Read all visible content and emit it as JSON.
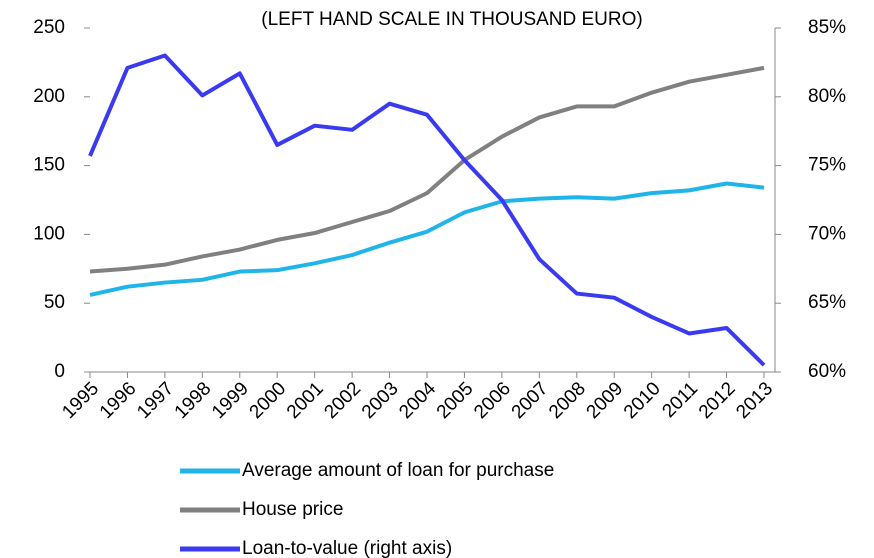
{
  "chart_data": {
    "type": "line",
    "title": "(LEFT HAND SCALE IN THOUSAND EURO)",
    "categories": [
      "1995",
      "1996",
      "1997",
      "1998",
      "1999",
      "2000",
      "2001",
      "2002",
      "2003",
      "2004",
      "2005",
      "2006",
      "2007",
      "2008",
      "2009",
      "2010",
      "2011",
      "2012",
      "2013"
    ],
    "series": [
      {
        "name": "Average amount of loan for purchase",
        "color": "#1fb5e8",
        "values": [
          56,
          62,
          65,
          67,
          73,
          74,
          79,
          85,
          94,
          102,
          116,
          124,
          126,
          127,
          126,
          130,
          132,
          137,
          134
        ]
      },
      {
        "name": "House price",
        "color": "#808080",
        "values": [
          73,
          75,
          78,
          84,
          89,
          96,
          101,
          109,
          117,
          130,
          154,
          171,
          185,
          193,
          193,
          203,
          211,
          216,
          221
        ]
      },
      {
        "name": "Loan-to-value (right axis)",
        "color": "#3a3af0",
        "axis": "y2",
        "values": [
          75.7,
          82.1,
          83.0,
          80.1,
          81.7,
          76.5,
          77.9,
          77.6,
          79.5,
          78.7,
          75.4,
          72.5,
          68.2,
          65.7,
          65.4,
          64.0,
          62.8,
          63.2,
          60.5
        ]
      }
    ],
    "ylim": [
      0,
      250
    ],
    "yticks": [
      0,
      50,
      100,
      150,
      200,
      250
    ],
    "y2lim": [
      60,
      85
    ],
    "y2ticks": [
      {
        "value": 60,
        "label": "60%"
      },
      {
        "value": 65,
        "label": "65%"
      },
      {
        "value": 70,
        "label": "70%"
      },
      {
        "value": 75,
        "label": "75%"
      },
      {
        "value": 80,
        "label": "80%"
      },
      {
        "value": 85,
        "label": "85%"
      }
    ],
    "legend": "bottom"
  }
}
